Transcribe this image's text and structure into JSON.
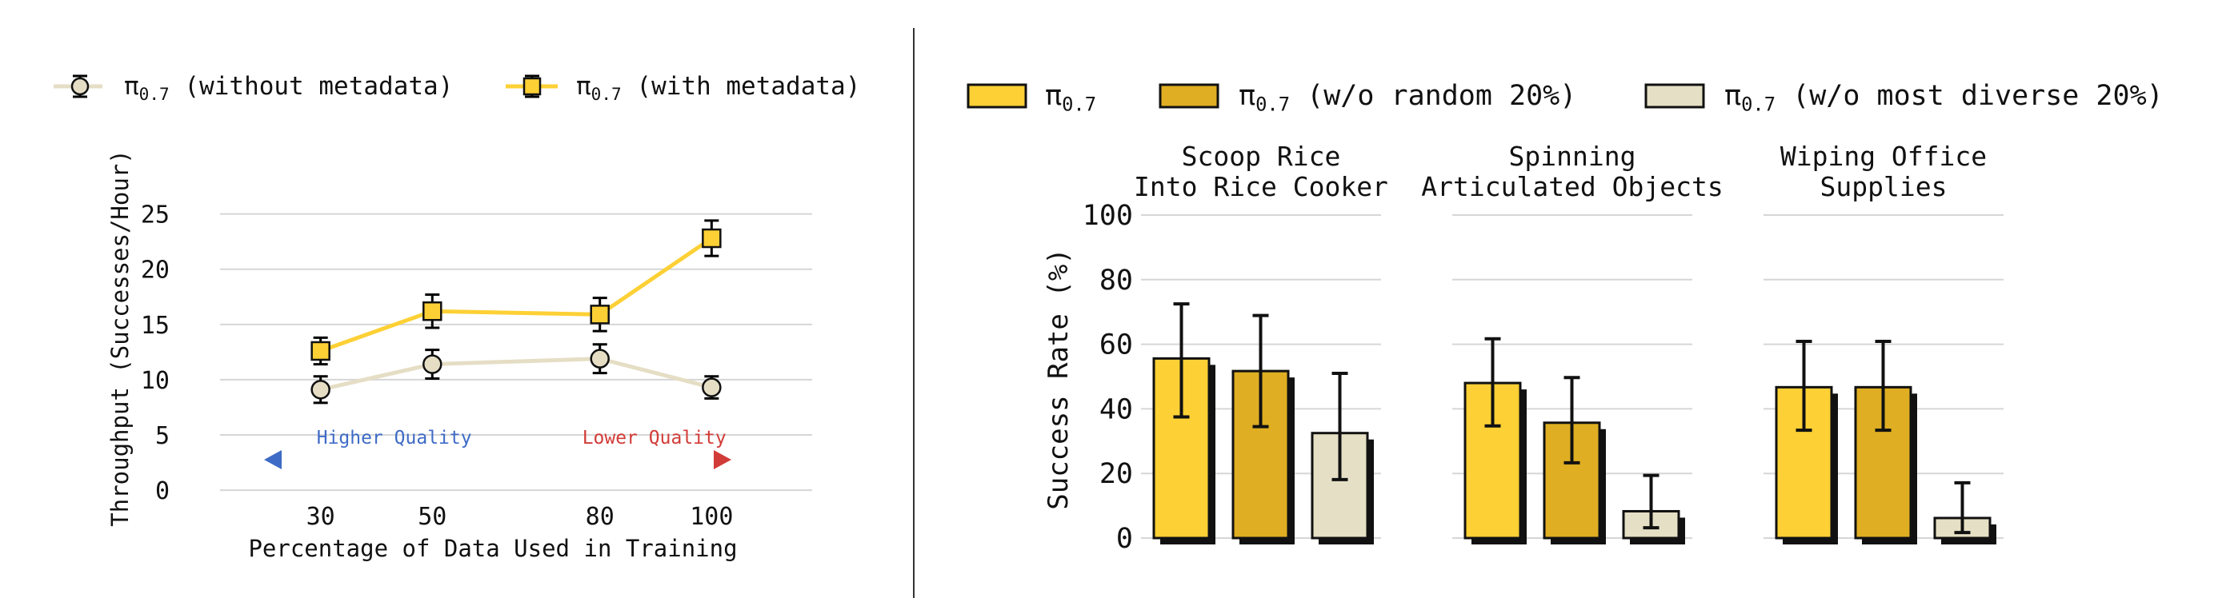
{
  "chart_data": [
    {
      "type": "line",
      "xlabel": "Percentage of Data Used in Training",
      "ylabel": "Throughput (Successes/Hour)",
      "x": [
        30,
        50,
        80,
        100
      ],
      "x_tick_labels": [
        "30",
        "50",
        "80",
        "100"
      ],
      "y_ticks": [
        0,
        5,
        10,
        15,
        20,
        25
      ],
      "ylim": [
        -0.5,
        27
      ],
      "xlim": [
        12,
        118
      ],
      "grid": "horizontal",
      "legend_position": "top",
      "series": [
        {
          "name": "π0.7 (without metadata)",
          "values": [
            9.1,
            11.4,
            11.9,
            9.3
          ],
          "errors": [
            1.2,
            1.3,
            1.3,
            1.0
          ],
          "color": "#e5dec5",
          "marker": "circle"
        },
        {
          "name": "π0.7 (with metadata)",
          "values": [
            12.6,
            16.2,
            15.9,
            22.8
          ],
          "errors": [
            1.2,
            1.5,
            1.5,
            1.6
          ],
          "color": "#fdd035",
          "marker": "square"
        }
      ],
      "annotations": [
        {
          "text": "Higher Quality",
          "at_x": 30,
          "color": "#3e6bc6"
        },
        {
          "text": "Lower Quality",
          "at_x": 80,
          "color": "#d23c38"
        }
      ]
    },
    {
      "type": "bar",
      "ylabel": "Success Rate (%)",
      "ylim": [
        0,
        100
      ],
      "y_ticks": [
        0,
        20,
        40,
        60,
        80,
        100
      ],
      "grid": "horizontal",
      "legend_position": "top",
      "series_meta": [
        {
          "name": "π0.7",
          "color": "#fdd035"
        },
        {
          "name": "π0.7 (w/o random 20%)",
          "color": "#dfae22"
        },
        {
          "name": "π0.7 (w/o most diverse 20%)",
          "color": "#e5dfc5"
        }
      ],
      "groups": [
        {
          "title": [
            "Scoop Rice",
            "Into Rice Cooker"
          ],
          "values": [
            55.6,
            51.7,
            32.5
          ],
          "errors": [
            [
              37.5,
              72.5
            ],
            [
              34.5,
              68.9
            ],
            [
              18.1,
              51.0
            ]
          ]
        },
        {
          "title": [
            "Spinning",
            "Articulated Objects"
          ],
          "values": [
            48.0,
            35.7,
            8.3
          ],
          "errors": [
            [
              34.7,
              61.7
            ],
            [
              23.3,
              49.7
            ],
            [
              3.2,
              19.4
            ]
          ]
        },
        {
          "title": [
            "Wiping Office",
            "Supplies"
          ],
          "values": [
            46.7,
            46.7,
            6.2
          ],
          "errors": [
            [
              33.4,
              60.9
            ],
            [
              33.4,
              60.9
            ],
            [
              1.7,
              17.1
            ]
          ]
        }
      ]
    }
  ]
}
